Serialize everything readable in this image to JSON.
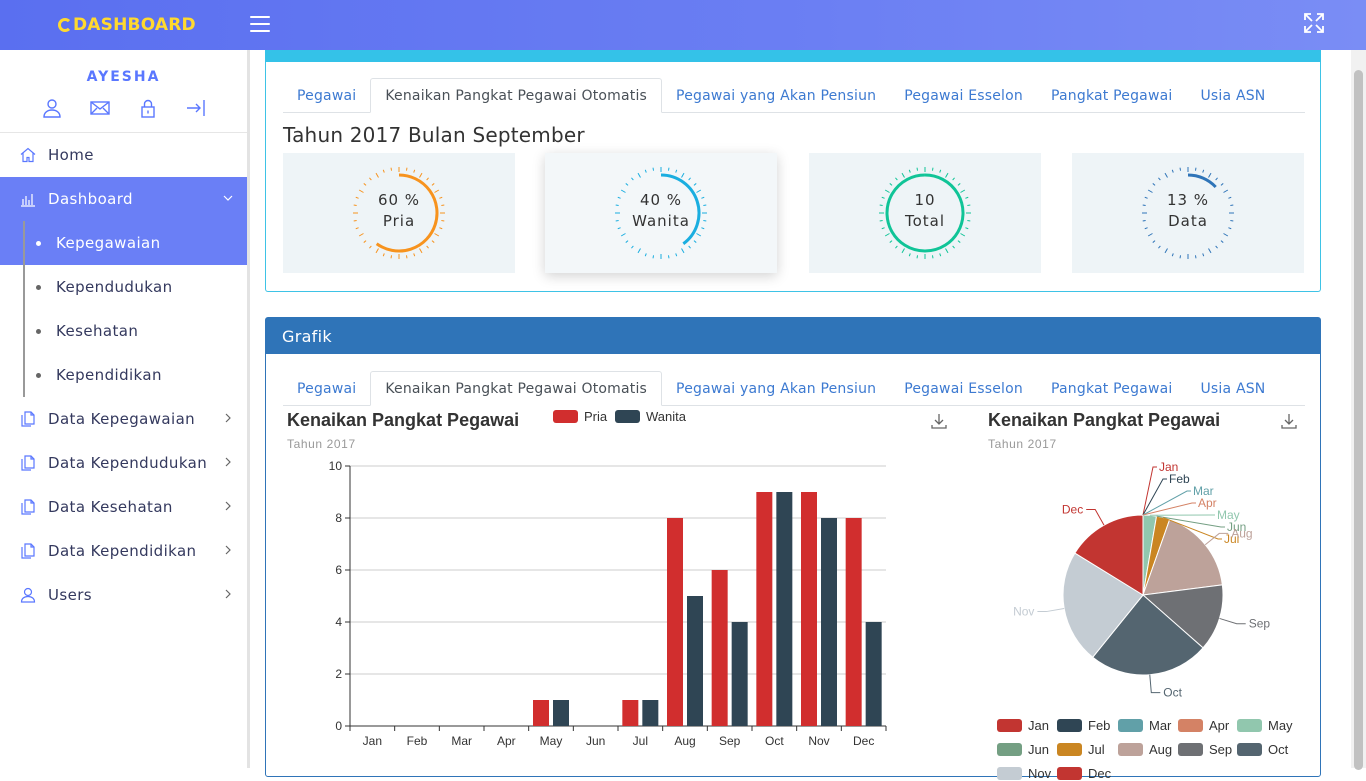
{
  "topbar": {
    "logo_text": "DASHBOARD"
  },
  "sidebar": {
    "username": "AYESHA",
    "items": [
      {
        "label": "Home"
      },
      {
        "label": "Dashboard"
      },
      {
        "label": "Data Kepegawaian"
      },
      {
        "label": "Data Kependudukan"
      },
      {
        "label": "Data Kesehatan"
      },
      {
        "label": "Data Kependidikan"
      },
      {
        "label": "Users"
      }
    ],
    "sub_items": [
      {
        "label": "Kepegawaian"
      },
      {
        "label": "Kependudukan"
      },
      {
        "label": "Kesehatan"
      },
      {
        "label": "Kependidikan"
      }
    ]
  },
  "tabs": [
    "Pegawai",
    "Kenaikan Pangkat Pegawai Otomatis",
    "Pegawai yang Akan Pensiun",
    "Pegawai Esselon",
    "Pangkat Pegawai",
    "Usia ASN"
  ],
  "summary": {
    "title": "Tahun 2017 Bulan September",
    "cards": [
      {
        "value": "60 %",
        "label": "Pria",
        "fraction": 0.6,
        "color": "#f7931e"
      },
      {
        "value": "40 %",
        "label": "Wanita",
        "fraction": 0.4,
        "color": "#1aaee0"
      },
      {
        "value": "10",
        "label": "Total",
        "fraction": 1.0,
        "color": "#10c497"
      },
      {
        "value": "13 %",
        "label": "Data",
        "fraction": 0.13,
        "color": "#2f74b8"
      }
    ]
  },
  "grafik": {
    "title": "Grafik"
  },
  "bar_chart_text": {
    "title": "Kenaikan Pangkat Pegawai",
    "subtitle": "Tahun 2017"
  },
  "pie_chart_text": {
    "title": "Kenaikan Pangkat Pegawai",
    "subtitle": "Tahun 2017"
  },
  "chart_data": [
    {
      "type": "bar",
      "title": "Kenaikan Pangkat Pegawai",
      "subtitle": "Tahun 2017",
      "categories": [
        "Jan",
        "Feb",
        "Mar",
        "Apr",
        "May",
        "Jun",
        "Jul",
        "Aug",
        "Sep",
        "Oct",
        "Nov",
        "Dec"
      ],
      "series": [
        {
          "name": "Pria",
          "color": "#d12e2e",
          "values": [
            0,
            0,
            0,
            0,
            1,
            0,
            1,
            8,
            6,
            9,
            9,
            8
          ]
        },
        {
          "name": "Wanita",
          "color": "#2f4554",
          "values": [
            0,
            0,
            0,
            0,
            1,
            0,
            1,
            5,
            4,
            9,
            8,
            4
          ]
        }
      ],
      "ylim": [
        0,
        10
      ],
      "yticks": [
        0,
        2,
        4,
        6,
        8,
        10
      ],
      "grid": true,
      "legend": "top"
    },
    {
      "type": "pie",
      "title": "Kenaikan Pangkat Pegawai",
      "subtitle": "Tahun 2017",
      "categories": [
        "Jan",
        "Feb",
        "Mar",
        "Apr",
        "May",
        "Jun",
        "Jul",
        "Aug",
        "Sep",
        "Oct",
        "Nov",
        "Dec"
      ],
      "values": [
        0,
        0,
        0,
        0,
        2,
        0,
        2,
        13,
        10,
        18,
        17,
        12
      ],
      "colors": [
        "#c23531",
        "#2f4554",
        "#61a0a8",
        "#d48265",
        "#91c7ae",
        "#749f83",
        "#ca8622",
        "#bda29a",
        "#6e7074",
        "#546570",
        "#c4ccd3",
        "#c23531"
      ],
      "legend": "bottom"
    }
  ]
}
